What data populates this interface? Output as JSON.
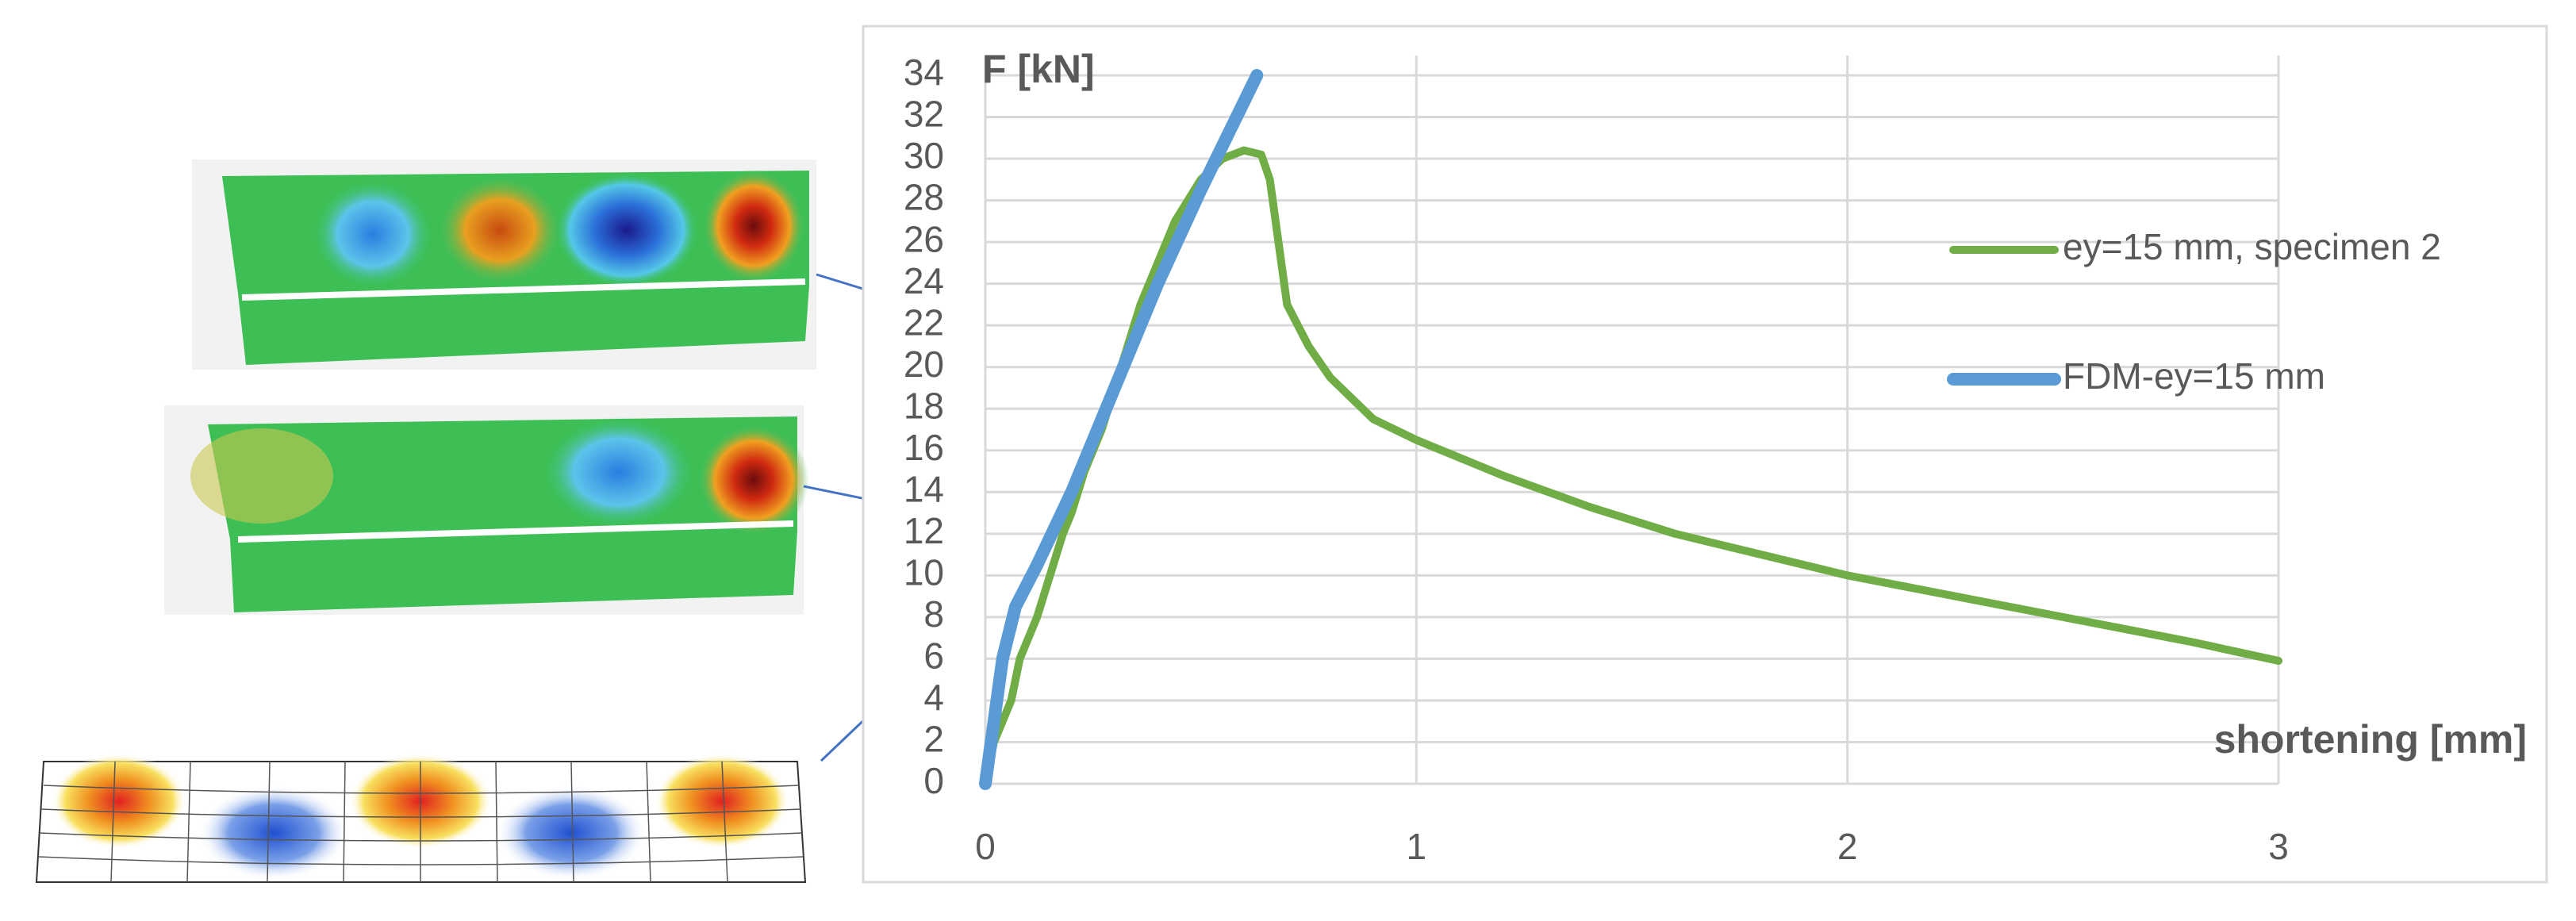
{
  "chart_data": {
    "type": "line",
    "x_label": "shortening [mm]",
    "y_label": "F [kN]",
    "xlim": [
      0,
      3
    ],
    "ylim": [
      0,
      34
    ],
    "xticks": [
      0,
      1,
      2,
      3
    ],
    "yticks": [
      0,
      2,
      4,
      6,
      8,
      10,
      12,
      14,
      16,
      18,
      20,
      22,
      24,
      26,
      28,
      30,
      32,
      34
    ],
    "grid": true,
    "legend": "right",
    "series": [
      {
        "name": "ey=15 mm, specimen 2",
        "color": "#70ad47",
        "x": [
          0,
          0.02,
          0.04,
          0.06,
          0.08,
          0.1,
          0.12,
          0.15,
          0.18,
          0.2,
          0.23,
          0.27,
          0.3,
          0.33,
          0.36,
          0.4,
          0.44,
          0.5,
          0.55,
          0.6,
          0.64,
          0.66,
          0.68,
          0.7,
          0.75,
          0.8,
          0.9,
          1,
          1.2,
          1.4,
          1.6,
          1.8,
          2,
          2.2,
          2.4,
          2.6,
          2.8,
          3
        ],
        "values": [
          0,
          2,
          3,
          4,
          6,
          7,
          8,
          10,
          12,
          13,
          15,
          17,
          19,
          21,
          23,
          25,
          27,
          29,
          30,
          30.4,
          30.2,
          29,
          26,
          23,
          21,
          19.5,
          17.5,
          16.5,
          14.8,
          13.3,
          12,
          11,
          10,
          9.2,
          8.4,
          7.6,
          6.8,
          5.9
        ]
      },
      {
        "name": "FDM-ey=15 mm",
        "color": "#5b9bd5",
        "x": [
          0,
          0.04,
          0.07,
          0.12,
          0.2,
          0.3,
          0.4,
          0.5,
          0.63
        ],
        "values": [
          0,
          6,
          8.5,
          10.5,
          14,
          19,
          24,
          28.5,
          34
        ]
      }
    ]
  }
}
